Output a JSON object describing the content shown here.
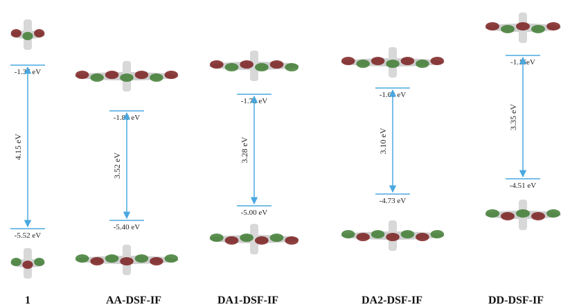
{
  "columns": [
    {
      "name": "1",
      "lumo": "-1.37 eV",
      "homo": "-5.52 eV",
      "gap": "4.15 eV"
    },
    {
      "name": "AA-DSF-IF",
      "lumo": "-1.88 eV",
      "homo": "-5.40 eV",
      "gap": "3.52 eV"
    },
    {
      "name": "DA1-DSF-IF",
      "lumo": "-1.72 eV",
      "homo": "-5.00 eV",
      "gap": "3.28 eV"
    },
    {
      "name": "DA2-DSF-IF",
      "lumo": "-1.63 eV",
      "homo": "-4.73 eV",
      "gap": "3.10 eV"
    },
    {
      "name": "DD-DSF-IF",
      "lumo": "-1.16eV",
      "homo": "-4.51 eV",
      "gap": "3.35 eV"
    }
  ]
}
